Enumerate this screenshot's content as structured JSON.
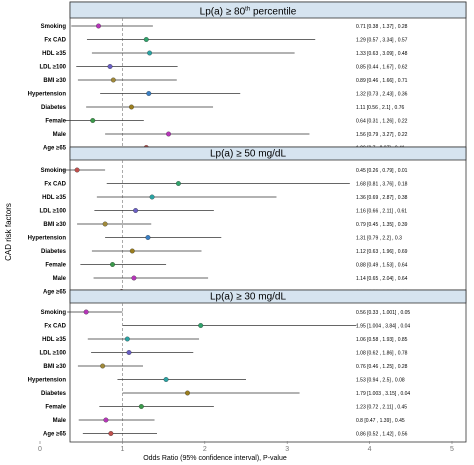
{
  "chart_data": {
    "type": "forest",
    "xlabel": "Odds Ratio (95% confidence interval), P-value",
    "ylabel": "CAD risk factors",
    "xlim": [
      0,
      5
    ],
    "xticks": [
      "0",
      "1",
      "2",
      "3",
      "4",
      "5"
    ],
    "reference_line": 1,
    "panels": [
      {
        "title_main": "Lp(a) ≥ 80",
        "title_sup": "th",
        "title_rest": " percentile",
        "rows": [
          {
            "label": "Smoking",
            "or": 0.71,
            "lo": 0.38,
            "hi": 1.37,
            "text": "0.71 [0.38 , 1.37] , 0.28",
            "color": "#b535b8"
          },
          {
            "label": "Fx CAD",
            "or": 1.29,
            "lo": 0.57,
            "hi": 3.34,
            "text": "1.29 [0.57 , 3.34] , 0.57",
            "color": "#2fa36b"
          },
          {
            "label": "HDL ≥35",
            "or": 1.33,
            "lo": 0.63,
            "hi": 3.09,
            "text": "1.33 [0.63 , 3.09] , 0.48",
            "color": "#2aa3a3"
          },
          {
            "label": "LDL ≥100",
            "or": 0.85,
            "lo": 0.44,
            "hi": 1.67,
            "text": "0.85 [0.44 , 1.67] , 0.62",
            "color": "#6a5fc4"
          },
          {
            "label": "BMI ≥30",
            "or": 0.89,
            "lo": 0.46,
            "hi": 1.66,
            "text": "0.89 [0.46 , 1.66] , 0.71",
            "color": "#a0893a"
          },
          {
            "label": "Hypertension",
            "or": 1.32,
            "lo": 0.73,
            "hi": 2.43,
            "text": "1.32 [0.73 , 2.43] , 0.36",
            "color": "#3a7fc4"
          },
          {
            "label": "Diabetes",
            "or": 1.11,
            "lo": 0.56,
            "hi": 2.1,
            "text": "1.11 [0.56 , 2.1] , 0.76",
            "color": "#9a7d1e"
          },
          {
            "label": "Female",
            "or": 0.64,
            "lo": 0.31,
            "hi": 1.26,
            "text": "0.64 [0.31 , 1.26] , 0.22",
            "color": "#3a9a4a"
          },
          {
            "label": "Male",
            "or": 1.56,
            "lo": 0.79,
            "hi": 3.27,
            "text": "1.56 [0.79 , 3.27] , 0.22",
            "color": "#b535b8"
          },
          {
            "label": "Age ≥65",
            "or": 1.29,
            "lo": 0.7,
            "hi": 2.37,
            "text": "1.29 [0.7 , 2.37] , 0.41",
            "color": "#c0504d"
          }
        ]
      },
      {
        "title_main": "Lp(a) ≥ 50 mg/dL",
        "title_sup": "",
        "title_rest": "",
        "rows": [
          {
            "label": "Smoking",
            "or": 0.45,
            "lo": 0.26,
            "hi": 0.79,
            "text": "0.45 [0.26 , 0.79] , 0.01",
            "color": "#c0504d"
          },
          {
            "label": "Fx CAD",
            "or": 1.68,
            "lo": 0.81,
            "hi": 3.76,
            "text": "1.68 [0.81 , 3.76] , 0.18",
            "color": "#2fa36b"
          },
          {
            "label": "HDL ≥35",
            "or": 1.36,
            "lo": 0.69,
            "hi": 2.87,
            "text": "1.36 [0.69 , 2.87] , 0.38",
            "color": "#2aa3a3"
          },
          {
            "label": "LDL ≥100",
            "or": 1.16,
            "lo": 0.66,
            "hi": 2.11,
            "text": "1.16 [0.66 , 2.11] , 0.61",
            "color": "#6a5fc4"
          },
          {
            "label": "BMI ≥30",
            "or": 0.79,
            "lo": 0.45,
            "hi": 1.35,
            "text": "0.79 [0.45 , 1.35] , 0.39",
            "color": "#a0893a"
          },
          {
            "label": "Hypertension",
            "or": 1.31,
            "lo": 0.79,
            "hi": 2.2,
            "text": "1.31 [0.79 , 2.2] , 0.3",
            "color": "#3a7fc4"
          },
          {
            "label": "Diabetes",
            "or": 1.12,
            "lo": 0.63,
            "hi": 1.96,
            "text": "1.12 [0.63 , 1.96] , 0.69",
            "color": "#9a7d1e"
          },
          {
            "label": "Female",
            "or": 0.88,
            "lo": 0.49,
            "hi": 1.53,
            "text": "0.88 [0.49 , 1.53] , 0.64",
            "color": "#3a9a4a"
          },
          {
            "label": "Male",
            "or": 1.14,
            "lo": 0.65,
            "hi": 2.04,
            "text": "1.14 [0.65 , 2.04] , 0.64",
            "color": "#b535b8"
          },
          {
            "label": "Age ≥65",
            "or": 0.99,
            "lo": 0.56,
            "hi": 1.67,
            "text": "0.99 [0.56 , 1.67] , 0.96",
            "color": "#c0504d"
          }
        ]
      },
      {
        "title_main": "Lp(a) ≥ 30 mg/dL",
        "title_sup": "",
        "title_rest": "",
        "rows": [
          {
            "label": "Smoking",
            "or": 0.56,
            "lo": 0.33,
            "hi": 1.001,
            "text": "0.56 [0.33 , 1.001] , 0.05",
            "color": "#b535b8"
          },
          {
            "label": "Fx CAD",
            "or": 1.95,
            "lo": 1.004,
            "hi": 3.84,
            "text": "1.95 [1.004 , 3.84] , 0.04",
            "color": "#2fa36b"
          },
          {
            "label": "HDL ≥35",
            "or": 1.06,
            "lo": 0.58,
            "hi": 1.93,
            "text": "1.06 [0.58 , 1.93] , 0.85",
            "color": "#2aa3a3"
          },
          {
            "label": "LDL ≥100",
            "or": 1.08,
            "lo": 0.62,
            "hi": 1.86,
            "text": "1.08 [0.62 , 1.86] , 0.78",
            "color": "#6a5fc4"
          },
          {
            "label": "BMI ≥30",
            "or": 0.76,
            "lo": 0.46,
            "hi": 1.25,
            "text": "0.76 [0.46 , 1.25] , 0.28",
            "color": "#a0893a"
          },
          {
            "label": "Hypertension",
            "or": 1.53,
            "lo": 0.94,
            "hi": 2.5,
            "text": "1.53 [0.94 , 2.5] , 0.08",
            "color": "#2aa3a3"
          },
          {
            "label": "Diabetes",
            "or": 1.79,
            "lo": 1.003,
            "hi": 3.15,
            "text": "1.79 [1.003 , 3.15] , 0.04",
            "color": "#9a7d1e"
          },
          {
            "label": "Female",
            "or": 1.23,
            "lo": 0.72,
            "hi": 2.11,
            "text": "1.23 [0.72 , 2.11] , 0.45",
            "color": "#3a9a4a"
          },
          {
            "label": "Male",
            "or": 0.8,
            "lo": 0.47,
            "hi": 1.39,
            "text": "0.8 [0.47 , 1.39] , 0.45",
            "color": "#b535b8"
          },
          {
            "label": "Age ≥65",
            "or": 0.86,
            "lo": 0.52,
            "hi": 1.42,
            "text": "0.86 [0.52 , 1.42] , 0.56",
            "color": "#c0504d"
          }
        ]
      }
    ]
  }
}
